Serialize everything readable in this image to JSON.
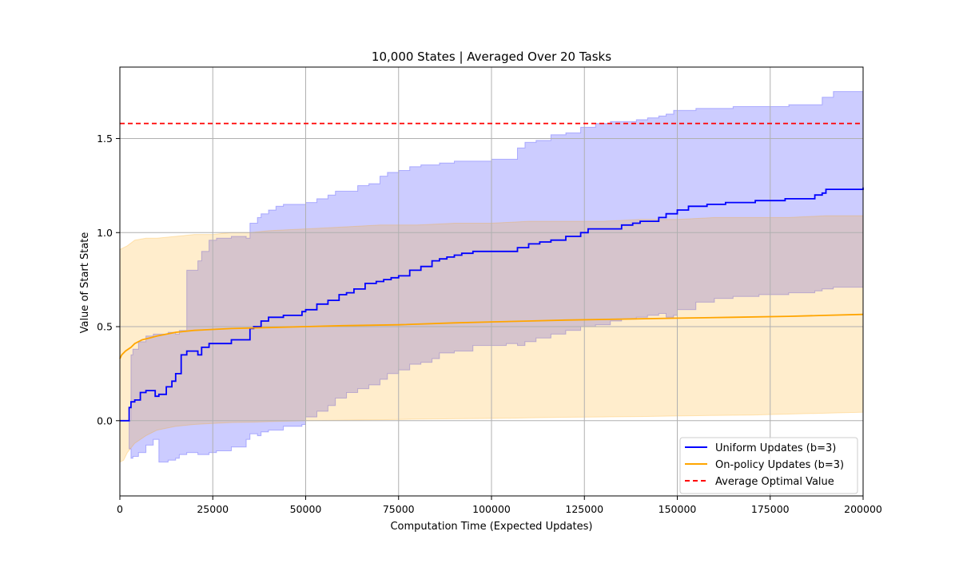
{
  "chart_data": {
    "type": "line",
    "title": "10,000 States | Averaged Over 20 Tasks",
    "xlabel": "Computation Time (Expected Updates)",
    "ylabel": "Value of Start State",
    "xlim": [
      0,
      200000
    ],
    "ylim": [
      -0.4,
      1.88
    ],
    "xticks": [
      0,
      25000,
      50000,
      75000,
      100000,
      125000,
      150000,
      175000,
      200000
    ],
    "yticks": [
      0.0,
      0.5,
      1.0,
      1.5
    ],
    "xtick_labels": [
      "0",
      "25000",
      "50000",
      "75000",
      "100000",
      "125000",
      "150000",
      "175000",
      "200000"
    ],
    "ytick_labels": [
      "0.0",
      "0.5",
      "1.0",
      "1.5"
    ],
    "grid": true,
    "legend_position": "lower-right",
    "reference_line": {
      "name": "Average Optimal Value",
      "y": 1.58,
      "color": "#ff0000",
      "style": "dashed"
    },
    "series": [
      {
        "name": "Uniform Updates (b=3)",
        "color": "#0000ff",
        "band_color": "#0000ff",
        "step": true,
        "x": [
          0,
          2500,
          3000,
          4000,
          5500,
          7000,
          9500,
          10500,
          12500,
          14000,
          15000,
          16500,
          18000,
          21000,
          22000,
          24000,
          30000,
          35000,
          36000,
          38000,
          40000,
          44000,
          49000,
          50000,
          53000,
          56000,
          59000,
          61000,
          63000,
          66000,
          69000,
          71000,
          73000,
          75000,
          78000,
          81000,
          84000,
          86000,
          88000,
          90000,
          92000,
          95000,
          98000,
          107000,
          110000,
          113000,
          116000,
          120000,
          124000,
          126000,
          135000,
          138000,
          140000,
          145000,
          147000,
          150000,
          153000,
          158000,
          163000,
          171000,
          179000,
          185000,
          187000,
          189000,
          190000,
          200000
        ],
        "y": [
          0.0,
          0.07,
          0.1,
          0.11,
          0.15,
          0.16,
          0.13,
          0.14,
          0.18,
          0.21,
          0.25,
          0.35,
          0.37,
          0.35,
          0.39,
          0.41,
          0.43,
          0.49,
          0.5,
          0.53,
          0.55,
          0.56,
          0.58,
          0.59,
          0.62,
          0.64,
          0.67,
          0.68,
          0.7,
          0.73,
          0.74,
          0.75,
          0.76,
          0.77,
          0.8,
          0.82,
          0.85,
          0.86,
          0.87,
          0.88,
          0.89,
          0.9,
          0.9,
          0.92,
          0.94,
          0.95,
          0.96,
          0.98,
          1.0,
          1.02,
          1.04,
          1.05,
          1.06,
          1.08,
          1.1,
          1.12,
          1.14,
          1.15,
          1.16,
          1.17,
          1.18,
          1.18,
          1.2,
          1.21,
          1.23,
          1.24
        ],
        "band_x": [
          0,
          2500,
          3000,
          3500,
          5000,
          7000,
          9000,
          10500,
          13000,
          15000,
          16000,
          18000,
          21000,
          22000,
          24000,
          26000,
          30000,
          34000,
          35000,
          37000,
          38000,
          40000,
          42000,
          44000,
          47000,
          49000,
          50000,
          53000,
          56000,
          58000,
          61000,
          64000,
          67000,
          70000,
          72000,
          75000,
          78000,
          81000,
          84000,
          86000,
          90000,
          95000,
          100000,
          104000,
          107000,
          109000,
          112000,
          116000,
          120000,
          124000,
          128000,
          132000,
          135000,
          139000,
          142000,
          145000,
          147000,
          149000,
          150000,
          155000,
          160000,
          165000,
          172000,
          180000,
          187000,
          189000,
          192000,
          200000
        ],
        "band_lower": [
          0.0,
          -0.15,
          -0.2,
          -0.19,
          -0.17,
          -0.13,
          -0.1,
          -0.22,
          -0.21,
          -0.2,
          -0.18,
          -0.17,
          -0.18,
          -0.18,
          -0.17,
          -0.16,
          -0.14,
          -0.1,
          -0.07,
          -0.08,
          -0.06,
          -0.05,
          -0.05,
          -0.03,
          -0.03,
          -0.02,
          0.02,
          0.05,
          0.08,
          0.12,
          0.15,
          0.17,
          0.19,
          0.22,
          0.25,
          0.27,
          0.3,
          0.31,
          0.33,
          0.36,
          0.37,
          0.4,
          0.4,
          0.41,
          0.4,
          0.42,
          0.44,
          0.46,
          0.48,
          0.5,
          0.51,
          0.53,
          0.54,
          0.55,
          0.56,
          0.57,
          0.55,
          0.56,
          0.59,
          0.63,
          0.65,
          0.66,
          0.67,
          0.68,
          0.69,
          0.7,
          0.71,
          0.72
        ],
        "band_upper": [
          0.0,
          0.0,
          0.35,
          0.38,
          0.42,
          0.45,
          0.46,
          0.46,
          0.47,
          0.46,
          0.48,
          0.8,
          0.85,
          0.9,
          0.96,
          0.97,
          0.98,
          0.97,
          1.05,
          1.08,
          1.1,
          1.12,
          1.14,
          1.15,
          1.15,
          1.15,
          1.16,
          1.18,
          1.2,
          1.22,
          1.22,
          1.25,
          1.26,
          1.3,
          1.32,
          1.33,
          1.35,
          1.36,
          1.36,
          1.37,
          1.38,
          1.38,
          1.39,
          1.39,
          1.45,
          1.48,
          1.49,
          1.52,
          1.53,
          1.56,
          1.58,
          1.59,
          1.59,
          1.6,
          1.61,
          1.62,
          1.63,
          1.65,
          1.65,
          1.66,
          1.66,
          1.67,
          1.67,
          1.68,
          1.68,
          1.72,
          1.75,
          1.77
        ]
      },
      {
        "name": "On-policy Updates (b=3)",
        "color": "#ffa500",
        "band_color": "#ffa500",
        "step": false,
        "x": [
          0,
          500,
          1500,
          3000,
          4000,
          6000,
          8000,
          10000,
          15000,
          20000,
          30000,
          40000,
          50000,
          60000,
          75000,
          90000,
          100000,
          110000,
          120000,
          135000,
          150000,
          165000,
          180000,
          190000,
          200000
        ],
        "y": [
          0.33,
          0.35,
          0.37,
          0.39,
          0.41,
          0.43,
          0.44,
          0.45,
          0.47,
          0.48,
          0.49,
          0.495,
          0.5,
          0.505,
          0.51,
          0.52,
          0.525,
          0.53,
          0.535,
          0.54,
          0.545,
          0.55,
          0.555,
          0.56,
          0.565
        ],
        "band_x": [
          0,
          1000,
          2000,
          4000,
          7000,
          10000,
          15000,
          20000,
          25000,
          30000,
          35000,
          40000,
          50000,
          60000,
          70000,
          80000,
          90000,
          100000,
          110000,
          120000,
          130000,
          140000,
          150000,
          160000,
          170000,
          180000,
          190000,
          200000
        ],
        "band_lower": [
          -0.22,
          -0.21,
          -0.17,
          -0.12,
          -0.08,
          -0.05,
          -0.03,
          -0.02,
          -0.015,
          -0.01,
          -0.008,
          -0.005,
          0.0,
          0.002,
          0.005,
          0.008,
          0.01,
          0.012,
          0.015,
          0.018,
          0.02,
          0.022,
          0.025,
          0.028,
          0.03,
          0.035,
          0.04,
          0.045
        ],
        "band_upper": [
          0.91,
          0.92,
          0.93,
          0.96,
          0.97,
          0.97,
          0.98,
          0.99,
          0.99,
          1.0,
          1.0,
          1.01,
          1.02,
          1.03,
          1.04,
          1.04,
          1.05,
          1.05,
          1.06,
          1.06,
          1.06,
          1.07,
          1.07,
          1.08,
          1.08,
          1.08,
          1.09,
          1.09
        ]
      }
    ]
  }
}
